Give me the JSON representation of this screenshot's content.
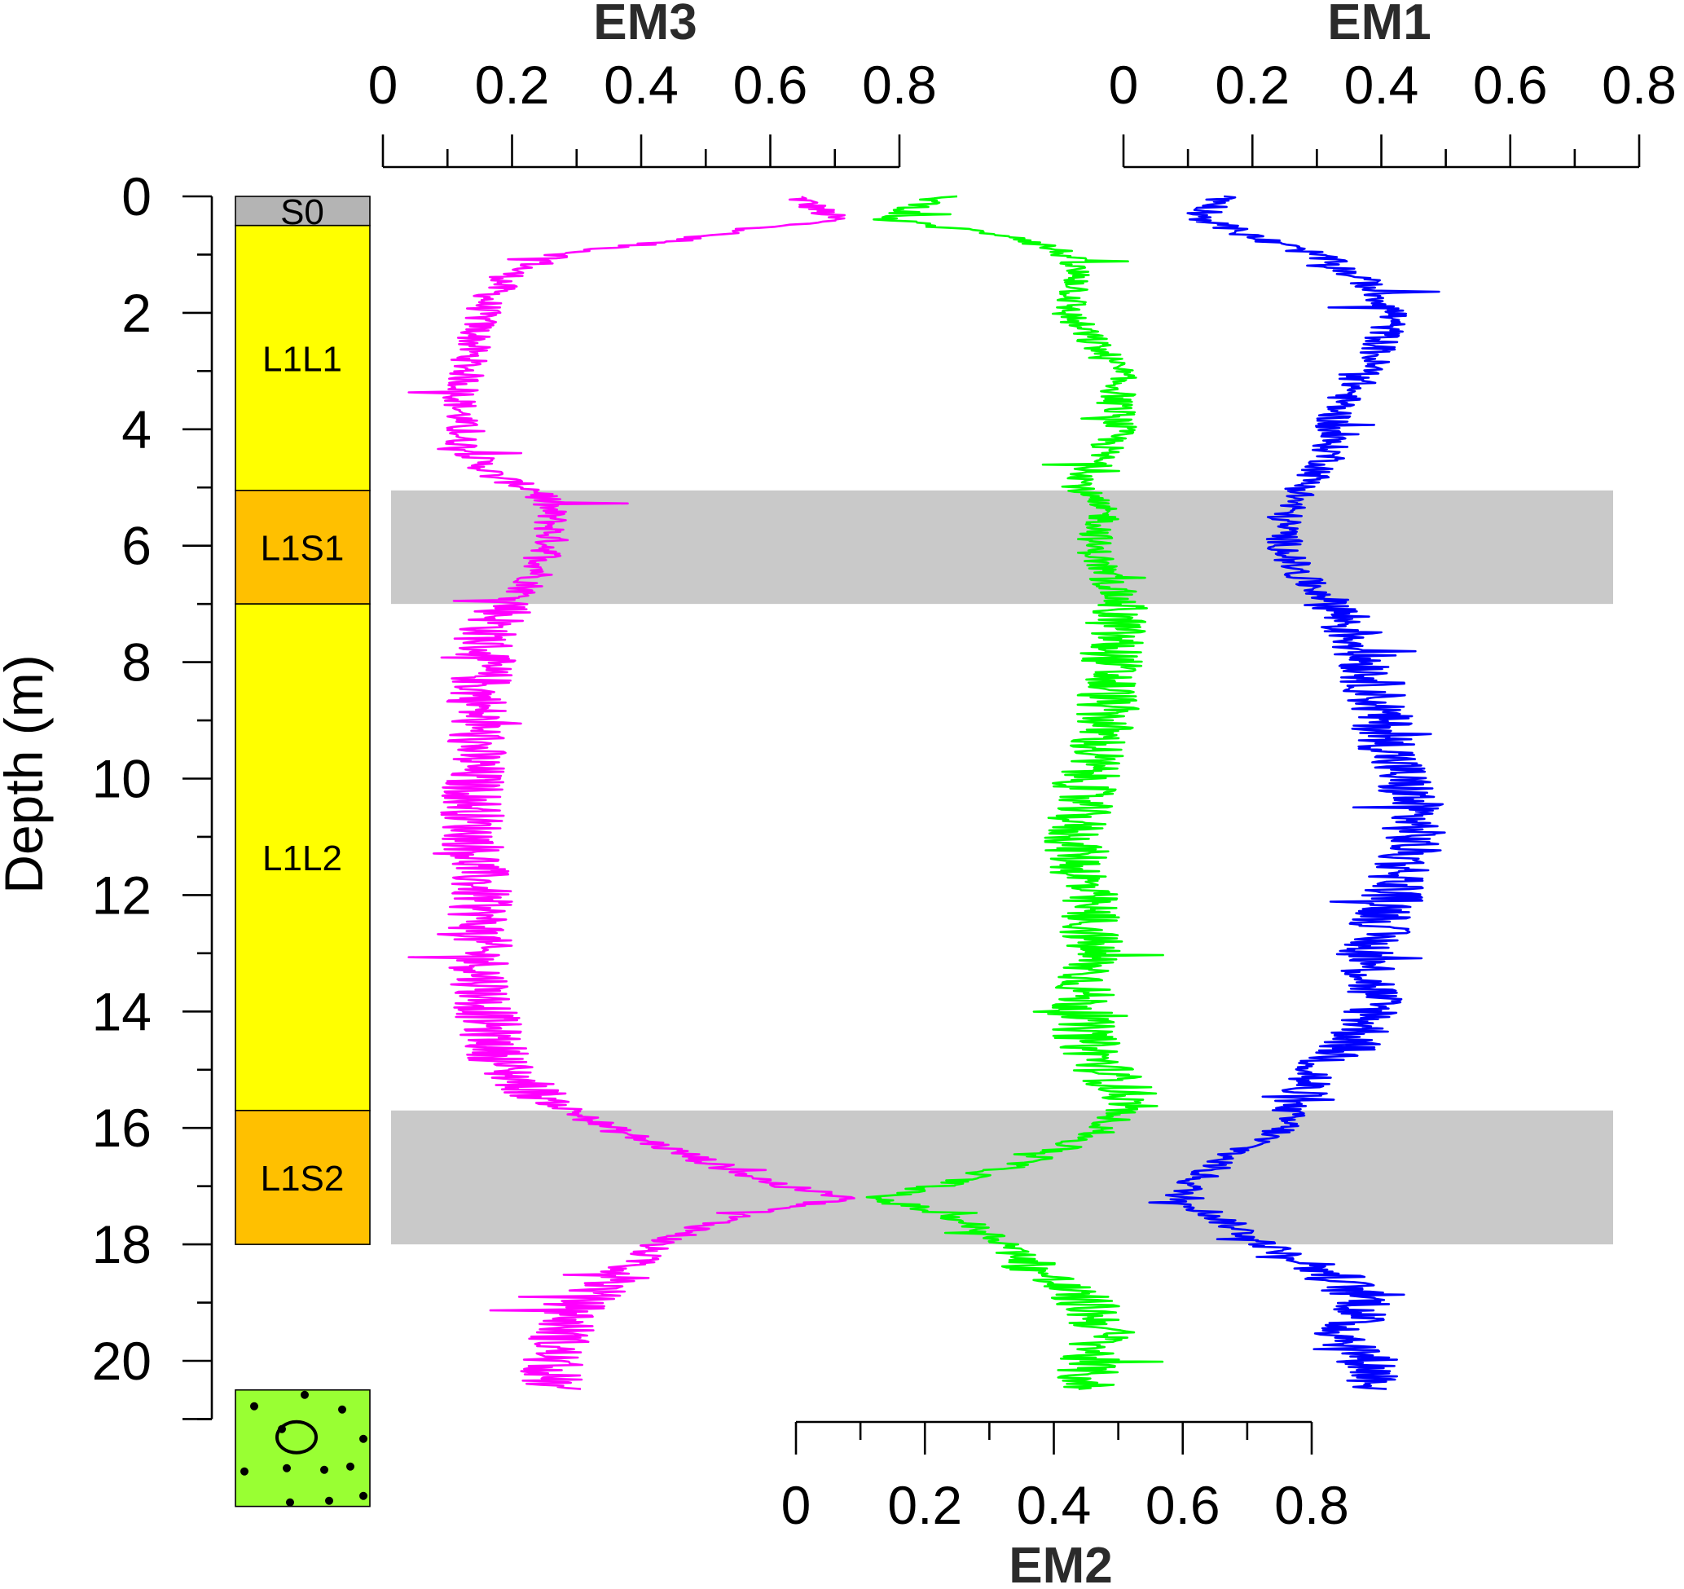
{
  "chart_data": {
    "type": "line",
    "depth_axis": {
      "label": "Depth (m)",
      "ticks": [
        0,
        2,
        4,
        6,
        8,
        10,
        12,
        14,
        16,
        18,
        20
      ],
      "range": [
        0,
        21
      ]
    },
    "proportion_axes": [
      {
        "id": "em3",
        "title": "EM3",
        "position": "top-left",
        "ticks": [
          "0",
          "0.2",
          "0.4",
          "0.6",
          "0.8"
        ],
        "range": [
          0,
          0.8
        ]
      },
      {
        "id": "em1",
        "title": "EM1",
        "position": "top-right",
        "ticks": [
          "0",
          "0.2",
          "0.4",
          "0.6",
          "0.8"
        ],
        "range": [
          0,
          0.8
        ]
      },
      {
        "id": "em2",
        "title": "EM2",
        "position": "bottom",
        "ticks": [
          "0",
          "0.2",
          "0.4",
          "0.6",
          "0.8"
        ],
        "range": [
          0,
          0.8
        ]
      }
    ],
    "units": [
      {
        "label": "S0",
        "top": 0.0,
        "bottom": 0.5,
        "color": "#b4b4b4"
      },
      {
        "label": "L1L1",
        "top": 0.5,
        "bottom": 5.05,
        "color": "#ffff00"
      },
      {
        "label": "L1S1",
        "top": 5.05,
        "bottom": 7.0,
        "color": "#ffc000"
      },
      {
        "label": "L1L2",
        "top": 7.0,
        "bottom": 15.7,
        "color": "#ffff00"
      },
      {
        "label": "L1S2",
        "top": 15.7,
        "bottom": 18.0,
        "color": "#ffc000"
      },
      {
        "label": "",
        "top": 20.5,
        "bottom": 22.5,
        "color": "#99ff33"
      }
    ],
    "highlight_bands": [
      [
        5.05,
        7.0
      ],
      [
        15.7,
        18.0
      ]
    ],
    "series": [
      {
        "axis": "em3",
        "color": "#ff00ff",
        "depth": [
          0,
          0.4,
          0.7,
          1.0,
          1.3,
          1.8,
          2.5,
          3.5,
          4.2,
          4.8,
          5.1,
          5.5,
          6.0,
          6.5,
          7.0,
          7.5,
          8.5,
          10,
          11,
          12,
          13,
          14,
          14.5,
          15,
          15.5,
          16.0,
          16.5,
          17.0,
          17.2,
          17.5,
          18.0,
          18.5,
          19.0,
          19.5,
          20.0,
          20.5
        ],
        "value": [
          0.64,
          0.7,
          0.48,
          0.28,
          0.2,
          0.16,
          0.14,
          0.12,
          0.12,
          0.17,
          0.25,
          0.26,
          0.26,
          0.24,
          0.2,
          0.16,
          0.15,
          0.14,
          0.14,
          0.15,
          0.15,
          0.16,
          0.17,
          0.19,
          0.25,
          0.35,
          0.48,
          0.62,
          0.72,
          0.55,
          0.42,
          0.38,
          0.3,
          0.28,
          0.26,
          0.26
        ]
      },
      {
        "axis": "em2",
        "color": "#00ff00",
        "depth": [
          0,
          0.4,
          0.7,
          1.0,
          1.5,
          2.0,
          3.0,
          4.0,
          5.0,
          5.5,
          6.0,
          7.0,
          8.0,
          9.0,
          10.0,
          11.0,
          12.0,
          13.0,
          14.0,
          14.5,
          15.0,
          15.5,
          16.0,
          16.5,
          17.0,
          17.2,
          17.5,
          18.0,
          18.5,
          19.0,
          19.5,
          20.0,
          20.5
        ],
        "value": [
          0.23,
          0.14,
          0.35,
          0.42,
          0.44,
          0.42,
          0.5,
          0.5,
          0.44,
          0.48,
          0.46,
          0.5,
          0.49,
          0.48,
          0.45,
          0.43,
          0.45,
          0.46,
          0.44,
          0.45,
          0.48,
          0.52,
          0.48,
          0.38,
          0.22,
          0.12,
          0.24,
          0.33,
          0.38,
          0.45,
          0.48,
          0.45,
          0.45
        ]
      },
      {
        "axis": "em1",
        "color": "#0000ff",
        "depth": [
          0,
          0.35,
          0.7,
          1.0,
          1.5,
          2.0,
          2.5,
          3.0,
          3.5,
          4.0,
          4.5,
          5.0,
          5.5,
          6.0,
          6.5,
          7.0,
          8.0,
          9.0,
          10.0,
          10.5,
          11.0,
          12.0,
          13.0,
          14.0,
          14.5,
          15.0,
          15.5,
          16.0,
          16.5,
          17.0,
          17.2,
          17.5,
          18.0,
          18.5,
          19.0,
          19.5,
          20.0,
          20.5
        ],
        "value": [
          0.16,
          0.12,
          0.2,
          0.3,
          0.38,
          0.42,
          0.4,
          0.38,
          0.34,
          0.32,
          0.32,
          0.28,
          0.25,
          0.25,
          0.27,
          0.33,
          0.38,
          0.4,
          0.43,
          0.45,
          0.45,
          0.42,
          0.38,
          0.39,
          0.36,
          0.3,
          0.26,
          0.25,
          0.16,
          0.1,
          0.09,
          0.14,
          0.22,
          0.32,
          0.38,
          0.34,
          0.38,
          0.4
        ]
      }
    ]
  }
}
